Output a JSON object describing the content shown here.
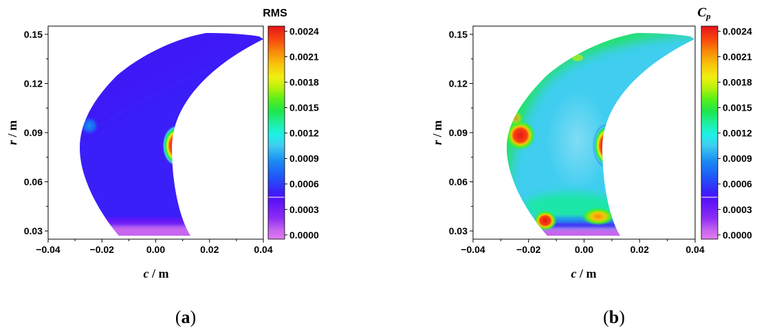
{
  "chart_data": [
    {
      "type": "contour",
      "panel_label_open": "(",
      "panel_label_letter": "a",
      "panel_label_close": ")",
      "xlabel_var": "c",
      "xlabel_unit": " / m",
      "ylabel_var": "r",
      "ylabel_unit": " / m",
      "xlim": [
        -0.04,
        0.04
      ],
      "ylim": [
        0.025,
        0.155
      ],
      "xticks": [
        "−0.04",
        "−0.02",
        "0.00",
        "0.02",
        "0.04"
      ],
      "xtick_values": [
        -0.04,
        -0.02,
        0.0,
        0.02,
        0.04
      ],
      "yticks": [
        "0.03",
        "0.06",
        "0.09",
        "0.12",
        "0.15"
      ],
      "ytick_values": [
        0.03,
        0.06,
        0.09,
        0.12,
        0.15
      ],
      "colorbar_title": "RMS",
      "colorbar_title_sub": "",
      "colorbar_range": [
        -5e-05,
        0.00246
      ],
      "colorbar_ticks": [
        "0.0024",
        "0.0021",
        "0.0018",
        "0.0015",
        "0.0012",
        "0.0009",
        "0.0006",
        "0.0003",
        "0.0000"
      ],
      "colorbar_tick_values": [
        0.0024,
        0.0021,
        0.0018,
        0.0015,
        0.0012,
        0.0009,
        0.0006,
        0.0003,
        0.0
      ],
      "background_value": 0.00035,
      "field_features": [
        {
          "description": "hot spot near pressure-side edge",
          "c": 0.0085,
          "r": 0.082,
          "value": 0.0024
        },
        {
          "description": "weak bump at suction side",
          "c": -0.025,
          "r": 0.093,
          "value": 0.0005
        },
        {
          "description": "low-value band at hub",
          "c": 0.0,
          "r": 0.029,
          "value": 0.0
        }
      ]
    },
    {
      "type": "contour",
      "panel_label_open": "(",
      "panel_label_letter": "b",
      "panel_label_close": ")",
      "xlabel_var": "c",
      "xlabel_unit": " / m",
      "ylabel_var": "r",
      "ylabel_unit": " / m",
      "xlim": [
        -0.04,
        0.04
      ],
      "ylim": [
        0.025,
        0.155
      ],
      "xticks": [
        "−0.04",
        "−0.02",
        "0.00",
        "0.02",
        "0.04"
      ],
      "xtick_values": [
        -0.04,
        -0.02,
        0.0,
        0.02,
        0.04
      ],
      "yticks": [
        "0.03",
        "0.06",
        "0.09",
        "0.12",
        "0.15"
      ],
      "ytick_values": [
        0.03,
        0.06,
        0.09,
        0.12,
        0.15
      ],
      "colorbar_title": "C",
      "colorbar_title_sub": "p",
      "colorbar_range": [
        -5e-05,
        0.00246
      ],
      "colorbar_ticks": [
        "0.0024",
        "0.0021",
        "0.0018",
        "0.0015",
        "0.0012",
        "0.0009",
        "0.0006",
        "0.0003",
        "0.0000"
      ],
      "colorbar_tick_values": [
        0.0024,
        0.0021,
        0.0018,
        0.0015,
        0.0012,
        0.0009,
        0.0006,
        0.0003,
        0.0
      ],
      "background_value": 0.0009,
      "field_features": [
        {
          "description": "hot spot near pressure-side edge",
          "c": 0.0085,
          "r": 0.082,
          "value": 0.0024
        },
        {
          "description": "hot spot at suction side",
          "c": -0.0235,
          "r": 0.088,
          "value": 0.0024
        },
        {
          "description": "hot spot near hub left",
          "c": -0.0135,
          "r": 0.036,
          "value": 0.0024
        },
        {
          "description": "warm spot near hub right",
          "c": 0.006,
          "r": 0.038,
          "value": 0.0019
        },
        {
          "description": "high band along suction edge",
          "c": -0.024,
          "r": 0.08,
          "value": 0.0014
        },
        {
          "description": "low-value band at hub",
          "c": 0.0,
          "r": 0.029,
          "value": 0.0
        }
      ]
    }
  ]
}
